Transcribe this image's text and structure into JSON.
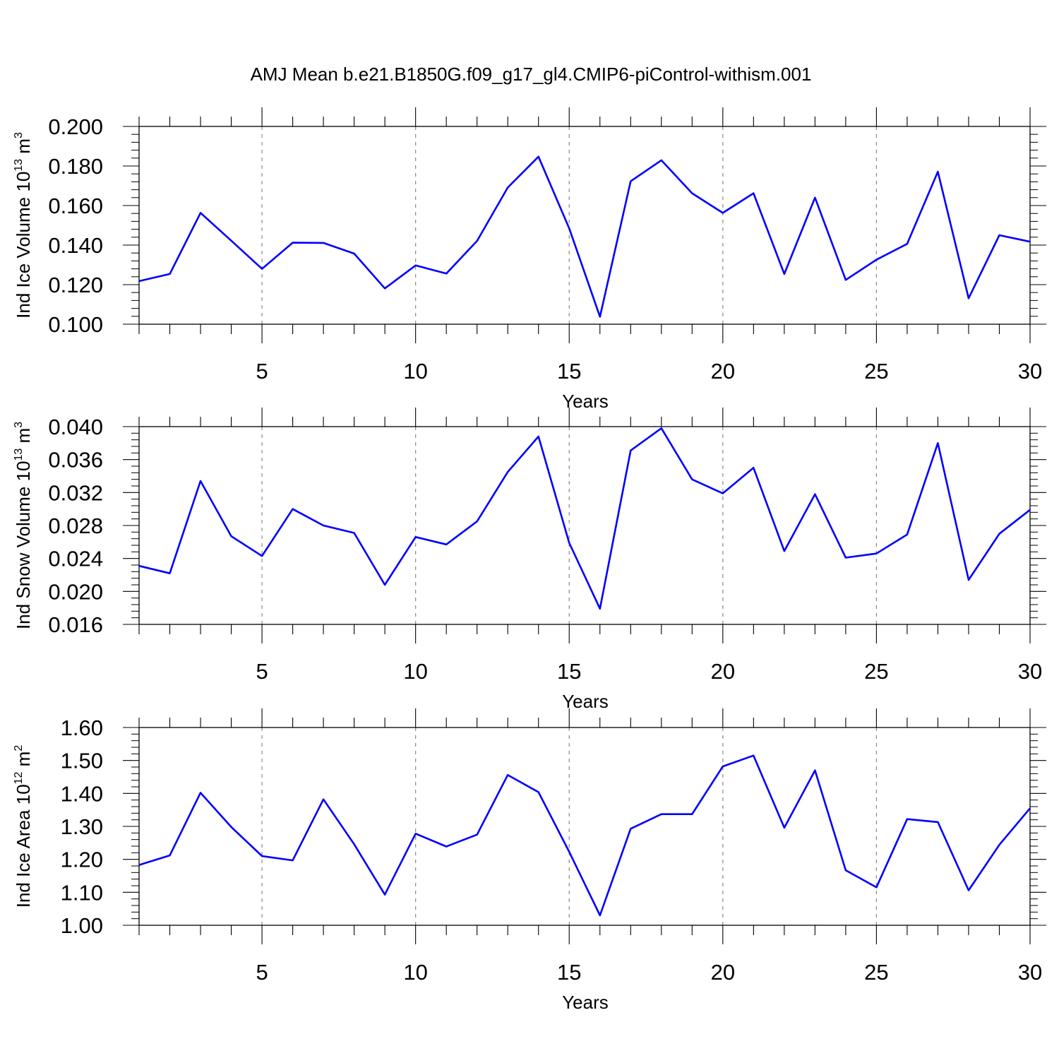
{
  "title": "AMJ Mean b.e21.B1850G.f09_g17_gl4.CMIP6-piControl-withism.001",
  "chart_data": [
    {
      "type": "line",
      "ylabel": {
        "text": "Ind Ice Volume 10",
        "exponent": "13",
        "unit": " m",
        "unit_exponent": "3"
      },
      "xlabel": "Years",
      "xlim": [
        1,
        30
      ],
      "ylim": [
        0.1,
        0.2
      ],
      "x_ticks": [
        5,
        10,
        15,
        20,
        25,
        30
      ],
      "y_ticks": [
        "0.100",
        "0.120",
        "0.140",
        "0.160",
        "0.180",
        "0.200"
      ],
      "grid": "vertical dashed",
      "color": "#0000ff",
      "x": [
        1,
        2,
        3,
        4,
        5,
        6,
        7,
        8,
        9,
        10,
        11,
        12,
        13,
        14,
        15,
        16,
        17,
        18,
        19,
        20,
        21,
        22,
        23,
        24,
        25,
        26,
        27,
        28,
        29,
        30
      ],
      "values": [
        0.1218,
        0.1254,
        0.1563,
        0.1422,
        0.128,
        0.1412,
        0.1411,
        0.1357,
        0.1181,
        0.1297,
        0.1256,
        0.1421,
        0.1691,
        0.1847,
        0.1485,
        0.1038,
        0.1723,
        0.1829,
        0.1662,
        0.1563,
        0.1662,
        0.1254,
        0.164,
        0.1224,
        0.1326,
        0.1406,
        0.1771,
        0.1131,
        0.145,
        0.1417
      ]
    },
    {
      "type": "line",
      "ylabel": {
        "text": "Ind Snow Volume 10",
        "exponent": "13",
        "unit": " m",
        "unit_exponent": "3"
      },
      "xlabel": "Years",
      "xlim": [
        1,
        30
      ],
      "ylim": [
        0.016,
        0.04
      ],
      "x_ticks": [
        5,
        10,
        15,
        20,
        25,
        30
      ],
      "y_ticks": [
        "0.016",
        "0.020",
        "0.024",
        "0.028",
        "0.032",
        "0.036",
        "0.040"
      ],
      "grid": "vertical dashed",
      "color": "#0000ff",
      "x": [
        1,
        2,
        3,
        4,
        5,
        6,
        7,
        8,
        9,
        10,
        11,
        12,
        13,
        14,
        15,
        16,
        17,
        18,
        19,
        20,
        21,
        22,
        23,
        24,
        25,
        26,
        27,
        28,
        29,
        30
      ],
      "values": [
        0.0231,
        0.0222,
        0.0334,
        0.0267,
        0.0243,
        0.03,
        0.028,
        0.0271,
        0.0208,
        0.0266,
        0.0257,
        0.0285,
        0.0345,
        0.0388,
        0.0259,
        0.0179,
        0.0371,
        0.0398,
        0.0336,
        0.0319,
        0.035,
        0.0249,
        0.0318,
        0.0241,
        0.0246,
        0.0269,
        0.038,
        0.0214,
        0.027,
        0.0299
      ]
    },
    {
      "type": "line",
      "ylabel": {
        "text": "Ind Ice Area 10",
        "exponent": "12",
        "unit": " m",
        "unit_exponent": "2"
      },
      "xlabel": "Years",
      "xlim": [
        1,
        30
      ],
      "ylim": [
        1.0,
        1.6
      ],
      "x_ticks": [
        5,
        10,
        15,
        20,
        25,
        30
      ],
      "y_ticks": [
        "1.00",
        "1.10",
        "1.20",
        "1.30",
        "1.40",
        "1.50",
        "1.60"
      ],
      "grid": "vertical dashed",
      "color": "#0000ff",
      "x": [
        1,
        2,
        3,
        4,
        5,
        6,
        7,
        8,
        9,
        10,
        11,
        12,
        13,
        14,
        15,
        16,
        17,
        18,
        19,
        20,
        21,
        22,
        23,
        24,
        25,
        26,
        27,
        28,
        29,
        30
      ],
      "values": [
        1.183,
        1.212,
        1.402,
        1.298,
        1.21,
        1.197,
        1.382,
        1.246,
        1.093,
        1.278,
        1.239,
        1.275,
        1.456,
        1.404,
        1.223,
        1.03,
        1.293,
        1.337,
        1.337,
        1.482,
        1.515,
        1.296,
        1.47,
        1.167,
        1.115,
        1.322,
        1.313,
        1.106,
        1.244,
        1.355
      ]
    }
  ]
}
